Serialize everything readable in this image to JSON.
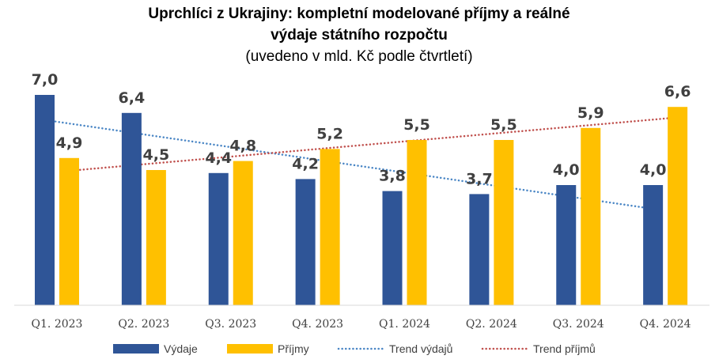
{
  "chart_data": {
    "type": "bar",
    "title_line1": "Uprchlíci z Ukrajiny: kompletní modelované příjmy a reálné",
    "title_line2": "výdaje státního rozpočtu",
    "subtitle": "(uvedeno v mld. Kč podle čtvrtletí)",
    "categories": [
      "Q1. 2023",
      "Q2. 2023",
      "Q3. 2023",
      "Q4. 2023",
      "Q1. 2024",
      "Q2. 2024",
      "Q3. 2024",
      "Q4. 2024"
    ],
    "series": [
      {
        "name": "Výdaje",
        "color": "#2F5597",
        "values": [
          7.0,
          6.4,
          4.4,
          4.2,
          3.8,
          3.7,
          4.0,
          4.0
        ],
        "labels": [
          "7,0",
          "6,4",
          "4,4",
          "4,2",
          "3,8",
          "3,7",
          "4,0",
          "4,0"
        ]
      },
      {
        "name": "Příjmy",
        "color": "#FFC000",
        "values": [
          4.9,
          4.5,
          4.8,
          5.2,
          5.5,
          5.5,
          5.9,
          6.6
        ],
        "labels": [
          "4,9",
          "4,5",
          "4,8",
          "5,2",
          "5,5",
          "5,5",
          "5,9",
          "6,6"
        ]
      }
    ],
    "trendlines": [
      {
        "name": "Trend výdajů",
        "color": "#4A86C5",
        "of_series": "Výdaje",
        "style": "dotted"
      },
      {
        "name": "Trend příjmů",
        "color": "#C0504D",
        "of_series": "Příjmy",
        "style": "dotted"
      }
    ],
    "ylim": [
      0,
      7.5
    ],
    "grid": false,
    "legend_position": "bottom"
  }
}
